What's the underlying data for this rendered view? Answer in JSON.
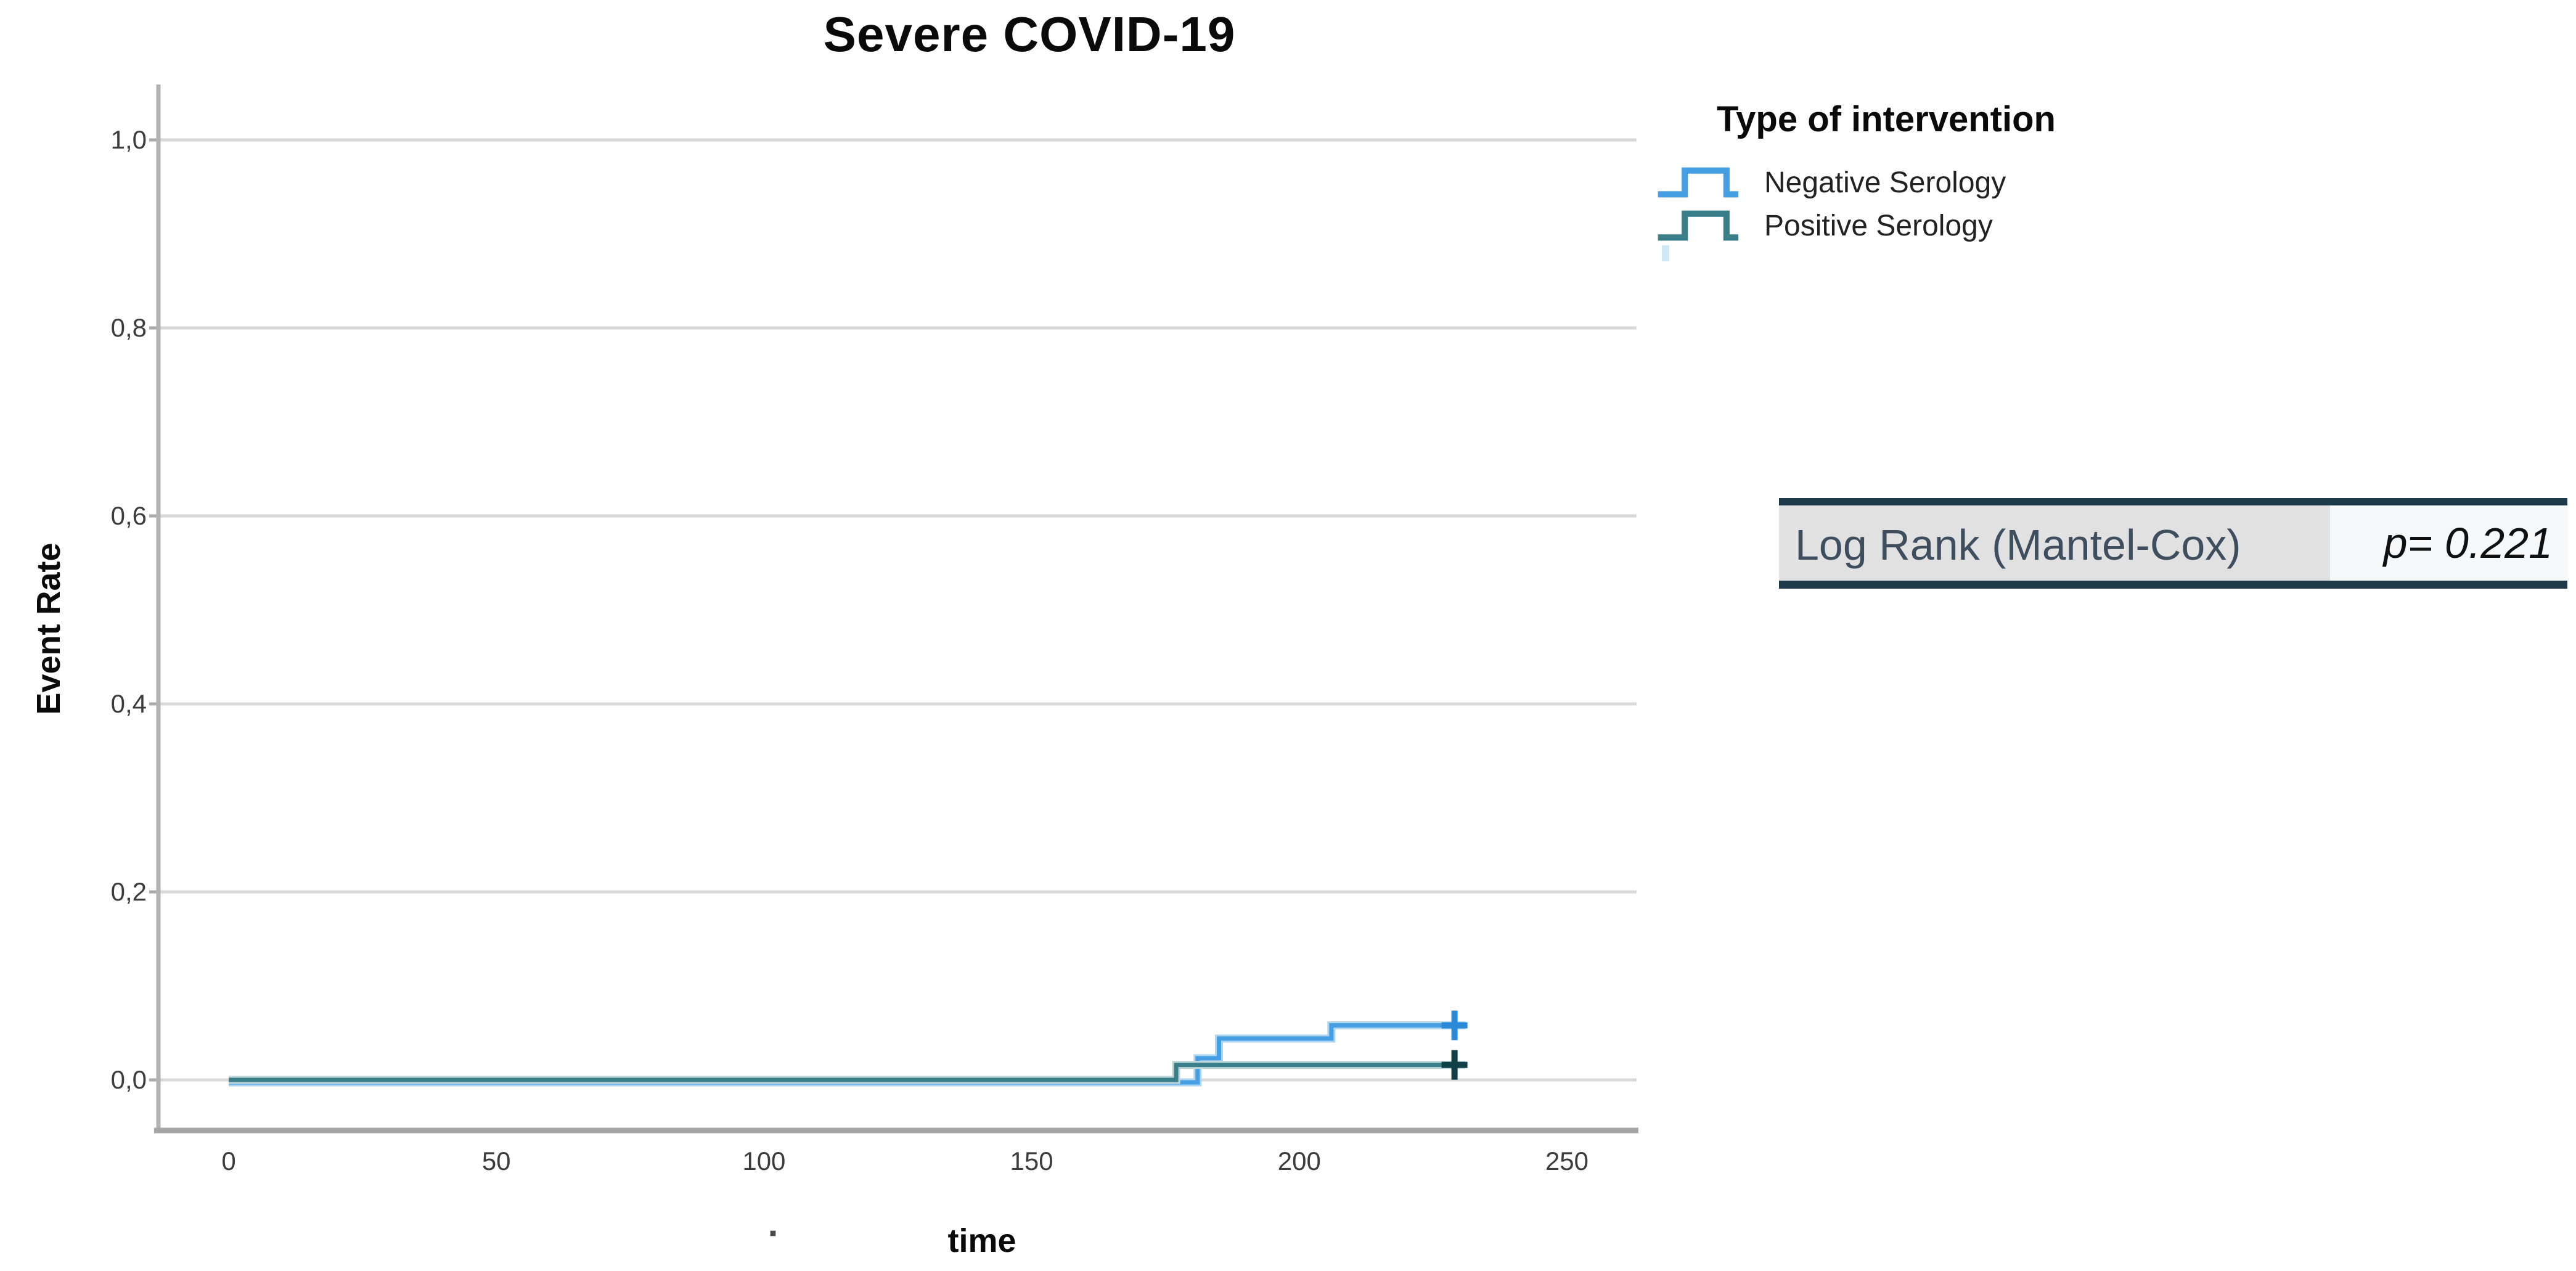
{
  "title": "Severe COVID-19",
  "legend": {
    "title": "Type of intervention",
    "items": [
      {
        "label": "Negative Serology",
        "color": "#459fe2"
      },
      {
        "label": "Positive Serology",
        "color": "#397e89"
      }
    ]
  },
  "stats_table": {
    "label": "Log Rank (Mantel-Cox)",
    "value": "p= 0.221"
  },
  "colors": {
    "series_negative": "#459fe2",
    "series_negative_halo": "#aed5f0",
    "series_negative_censor": "#2b8ad8",
    "series_positive": "#397e89",
    "series_positive_halo": "#bdd6d9",
    "series_positive_censor": "#103f48",
    "gridline": "#d9d9d9",
    "axis_line": "#aaaaaa",
    "table_border": "#1e3a4a",
    "table_label_bg": "#e1e1e1",
    "table_value_bg": "#f6f8f9"
  },
  "chart_data": {
    "type": "line",
    "subtype": "kaplan-meier-step",
    "title": "Severe COVID-19",
    "xlabel": "time",
    "ylabel": "Event Rate",
    "xlim": [
      0,
      263
    ],
    "ylim": [
      0,
      1.06
    ],
    "grid": "horizontal",
    "legend_position": "top-right-outside",
    "x_ticks": [
      0,
      50,
      100,
      150,
      200,
      250
    ],
    "y_ticks": [
      {
        "value": 1.0,
        "label": "1,0"
      },
      {
        "value": 0.8,
        "label": "0,8"
      },
      {
        "value": 0.6,
        "label": "0,6"
      },
      {
        "value": 0.4,
        "label": "0,4"
      },
      {
        "value": 0.2,
        "label": "0,2"
      },
      {
        "value": 0.0,
        "label": "0,0"
      }
    ],
    "series": [
      {
        "name": "Negative Serology",
        "color": "#459fe2",
        "halo_color": "#aed5f0",
        "censor_color": "#2b8ad8",
        "points": [
          [
            0,
            0
          ],
          [
            181,
            0
          ],
          [
            181,
            0.023
          ],
          [
            185,
            0.023
          ],
          [
            185,
            0.044
          ],
          [
            206,
            0.044
          ],
          [
            206,
            0.058
          ],
          [
            231,
            0.058
          ]
        ],
        "censored": [
          [
            229,
            0.058
          ]
        ]
      },
      {
        "name": "Positive Serology",
        "color": "#397e89",
        "halo_color": "#bdd6d9",
        "censor_color": "#103f48",
        "points": [
          [
            0,
            0
          ],
          [
            177,
            0
          ],
          [
            177,
            0.016
          ],
          [
            231,
            0.016
          ]
        ],
        "censored": [
          [
            229,
            0.016
          ]
        ]
      }
    ],
    "test": "Log Rank (Mantel-Cox)",
    "p_value": "p= 0.221"
  }
}
